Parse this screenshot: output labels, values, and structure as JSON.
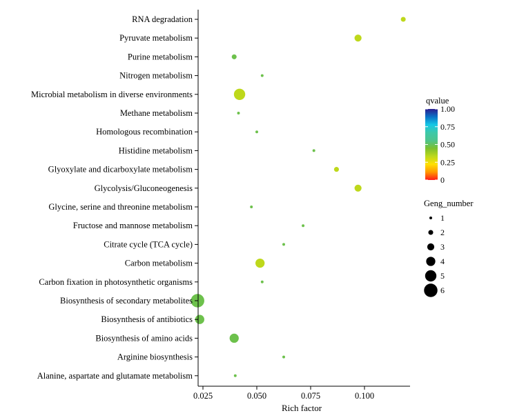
{
  "chart_data": {
    "type": "scatter",
    "title": "",
    "xlabel": "Rich factor",
    "ylabel": "",
    "xlim": [
      0.0205,
      0.1225
    ],
    "xticks": [
      0.025,
      0.05,
      0.075,
      0.1
    ],
    "xtick_labels": [
      "0.025",
      "0.050",
      "0.075",
      "0.100"
    ],
    "categories": [
      "RNA degradation",
      "Pyruvate metabolism",
      "Purine metabolism",
      "Nitrogen metabolism",
      "Microbial metabolism in diverse environments",
      "Methane metabolism",
      "Homologous recombination",
      "Histidine metabolism",
      "Glyoxylate and dicarboxylate metabolism",
      "Glycolysis/Gluconeogenesis",
      "Glycine, serine and threonine metabolism",
      "Fructose and mannose metabolism",
      "Citrate cycle (TCA cycle)",
      "Carbon metabolism",
      "Carbon fixation in photosynthetic organisms",
      "Biosynthesis of secondary metabolites",
      "Biosynthesis of antibiotics",
      "Biosynthesis of amino acids",
      "Arginine biosynthesis",
      "Alanine, aspartate and glutamate metabolism"
    ],
    "points": [
      {
        "term": "RNA degradation",
        "rich_factor": 0.118,
        "gene_number": 2,
        "qvalue": 0.33
      },
      {
        "term": "Pyruvate metabolism",
        "rich_factor": 0.097,
        "gene_number": 3,
        "qvalue": 0.33
      },
      {
        "term": "Purine metabolism",
        "rich_factor": 0.0395,
        "gene_number": 2,
        "qvalue": 0.48
      },
      {
        "term": "Nitrogen metabolism",
        "rich_factor": 0.0525,
        "gene_number": 1,
        "qvalue": 0.48
      },
      {
        "term": "Microbial metabolism in diverse environments",
        "rich_factor": 0.042,
        "gene_number": 5,
        "qvalue": 0.33
      },
      {
        "term": "Methane metabolism",
        "rich_factor": 0.0415,
        "gene_number": 1,
        "qvalue": 0.48
      },
      {
        "term": "Homologous recombination",
        "rich_factor": 0.05,
        "gene_number": 1,
        "qvalue": 0.48
      },
      {
        "term": "Histidine metabolism",
        "rich_factor": 0.0765,
        "gene_number": 1,
        "qvalue": 0.48
      },
      {
        "term": "Glyoxylate and dicarboxylate metabolism",
        "rich_factor": 0.087,
        "gene_number": 2,
        "qvalue": 0.33
      },
      {
        "term": "Glycolysis/Gluconeogenesis",
        "rich_factor": 0.097,
        "gene_number": 3,
        "qvalue": 0.33
      },
      {
        "term": "Glycine, serine and threonine metabolism",
        "rich_factor": 0.0475,
        "gene_number": 1,
        "qvalue": 0.48
      },
      {
        "term": "Fructose and mannose metabolism",
        "rich_factor": 0.0715,
        "gene_number": 1,
        "qvalue": 0.48
      },
      {
        "term": "Citrate cycle (TCA cycle)",
        "rich_factor": 0.0625,
        "gene_number": 1,
        "qvalue": 0.48
      },
      {
        "term": "Carbon metabolism",
        "rich_factor": 0.0515,
        "gene_number": 4,
        "qvalue": 0.33
      },
      {
        "term": "Carbon fixation in photosynthetic organisms",
        "rich_factor": 0.0525,
        "gene_number": 1,
        "qvalue": 0.48
      },
      {
        "term": "Biosynthesis of secondary metabolites",
        "rich_factor": 0.0225,
        "gene_number": 6,
        "qvalue": 0.48
      },
      {
        "term": "Biosynthesis of antibiotics",
        "rich_factor": 0.0235,
        "gene_number": 4,
        "qvalue": 0.48
      },
      {
        "term": "Biosynthesis of amino acids",
        "rich_factor": 0.0395,
        "gene_number": 4,
        "qvalue": 0.48
      },
      {
        "term": "Arginine biosynthesis",
        "rich_factor": 0.0625,
        "gene_number": 1,
        "qvalue": 0.48
      },
      {
        "term": "Alanine, aspartate and glutamate metabolism",
        "rich_factor": 0.04,
        "gene_number": 1,
        "qvalue": 0.48
      }
    ],
    "color_legend": {
      "title": "qvalue",
      "ticks": [
        1.0,
        0.75,
        0.5,
        0.25,
        0
      ],
      "tick_labels": [
        "1.00",
        "0.75",
        "0.50",
        "0.25",
        "0"
      ],
      "colormap": [
        "#2b1e8f",
        "#0a72c6",
        "#14c8e6",
        "#3ec8a8",
        "#4ec48c",
        "#7cc02e",
        "#bcd81c",
        "#ffe000",
        "#ff9800",
        "#ff1a1a"
      ]
    },
    "size_legend": {
      "title": "Geng_number",
      "values": [
        1,
        2,
        3,
        4,
        5,
        6
      ],
      "labels": [
        "1",
        "2",
        "3",
        "4",
        "5",
        "6"
      ]
    },
    "legend_position": "right"
  }
}
